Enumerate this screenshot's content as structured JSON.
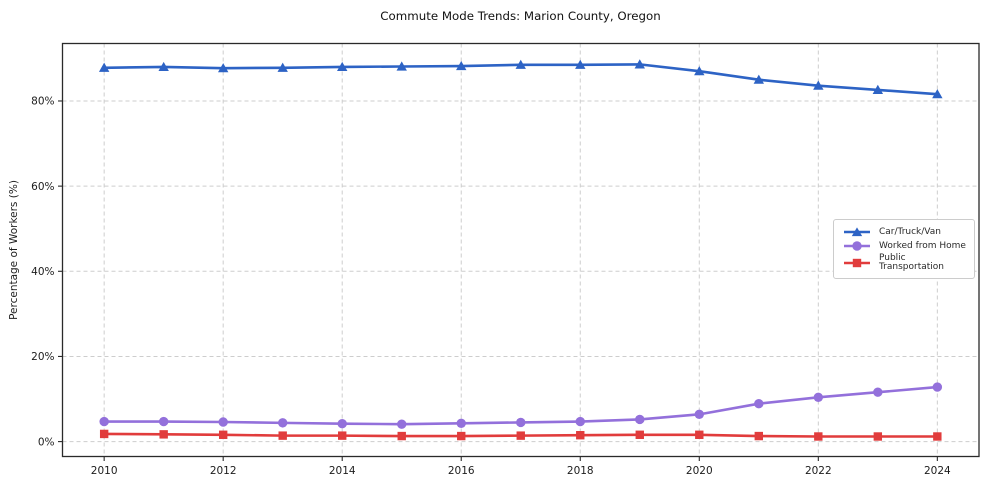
{
  "chart_data": {
    "type": "line",
    "title": "Commute Mode Trends: Marion County, Oregon",
    "xlabel": "",
    "ylabel": "Percentage of Workers (%)",
    "x": [
      2010,
      2011,
      2012,
      2013,
      2014,
      2015,
      2016,
      2017,
      2018,
      2019,
      2020,
      2021,
      2022,
      2023,
      2024
    ],
    "x_ticks": [
      2010,
      2012,
      2014,
      2016,
      2018,
      2020,
      2022,
      2024
    ],
    "y_ticks": [
      0,
      20,
      40,
      60,
      80
    ],
    "y_tick_suffix": "%",
    "xlim": [
      2009.3,
      2024.7
    ],
    "ylim": [
      -3.5,
      93.5
    ],
    "grid": true,
    "legend_position": "center-right",
    "series": [
      {
        "name": "Car/Truck/Van",
        "marker": "triangle",
        "color": "#2d63c5",
        "values": [
          87.8,
          88.0,
          87.7,
          87.8,
          88.0,
          88.1,
          88.2,
          88.5,
          88.5,
          88.6,
          87.0,
          85.0,
          83.6,
          82.6,
          81.6
        ]
      },
      {
        "name": "Worked from Home",
        "marker": "circle",
        "color": "#9370db",
        "values": [
          4.7,
          4.7,
          4.6,
          4.4,
          4.2,
          4.1,
          4.3,
          4.5,
          4.7,
          5.2,
          6.4,
          8.9,
          10.4,
          11.6,
          12.8
        ]
      },
      {
        "name": "Public Transportation",
        "marker": "square",
        "color": "#e13c3c",
        "values": [
          1.8,
          1.7,
          1.6,
          1.4,
          1.4,
          1.3,
          1.3,
          1.4,
          1.5,
          1.6,
          1.6,
          1.3,
          1.2,
          1.2,
          1.2
        ]
      }
    ]
  }
}
